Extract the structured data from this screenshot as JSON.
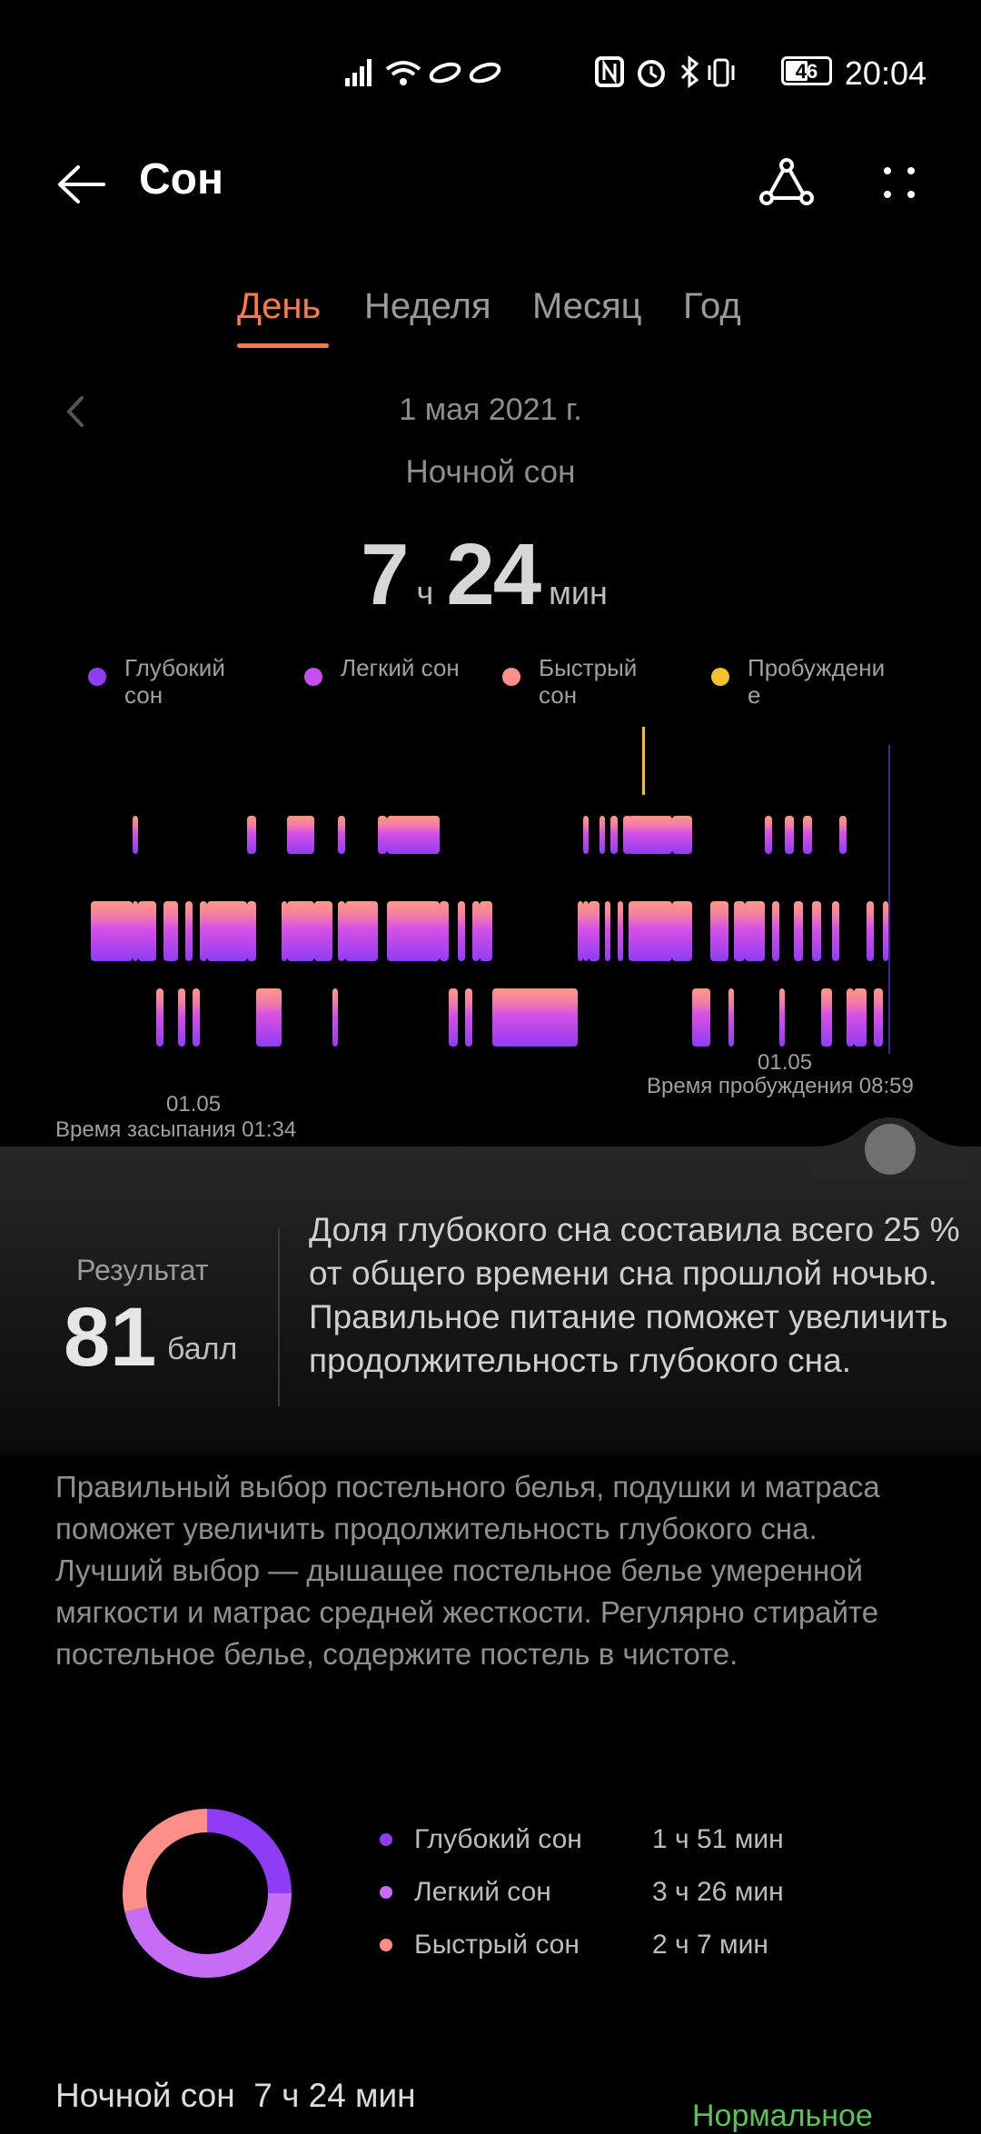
{
  "status_bar": {
    "time": "20:04",
    "battery": "46",
    "icons": [
      "signal-icon",
      "wifi-icon",
      "link-icon",
      "nfc-icon",
      "alarm-icon",
      "bluetooth-icon",
      "vibrate-icon",
      "battery-icon"
    ]
  },
  "header": {
    "title": "Сон",
    "icons": [
      "back-arrow-icon",
      "share-icon",
      "more-icon"
    ]
  },
  "tabs": [
    {
      "label": "День",
      "active": true
    },
    {
      "label": "Неделя",
      "active": false
    },
    {
      "label": "Месяц",
      "active": false
    },
    {
      "label": "Год",
      "active": false
    }
  ],
  "summary": {
    "date": "1 мая 2021 г.",
    "sleep_type": "Ночной сон",
    "hours": "7",
    "hours_unit": "ч",
    "minutes": "24",
    "minutes_unit": "мин"
  },
  "legend": [
    {
      "label": "Глубокий сон",
      "color": "#8f3df5"
    },
    {
      "label": "Легкий сон",
      "color": "#c84cf0"
    },
    {
      "label": "Быстрый сон",
      "color": "#ff8f88"
    },
    {
      "label": "Пробуждение",
      "color": "#f5c22d"
    }
  ],
  "chart": {
    "start_date": "01.05",
    "start_label": "Время засыпания 01:34",
    "end_date": "01.05",
    "end_label": "Время пробуждения 08:59"
  },
  "result": {
    "label": "Результат",
    "score": "81",
    "unit": "балл",
    "message": "Доля глубокого сна составила всего 25 % от общего времени сна прошлой ночью. Правильное питание поможет увеличить продолжительность глубокого сна."
  },
  "advice": "Правильный выбор постельного белья, подушки и матраса поможет увеличить продолжительность глубокого сна. Лучший выбор — дышащее постельное белье умеренной мягкости и матрас средней жесткости. Регулярно стирайте постельное белье, содержите постель в чистоте.",
  "stats": [
    {
      "name": "Глубокий сон",
      "value": "1 ч 51 мин",
      "color": "#8f3df5"
    },
    {
      "name": "Легкий сон",
      "value": "3 ч 26 мин",
      "color": "#c66cf5"
    },
    {
      "name": "Быстрый сон",
      "value": "2 ч 7 мин",
      "color": "#ff8f88"
    }
  ],
  "chart_data": {
    "type": "pie",
    "categories": [
      "Глубокий сон",
      "Легкий сон",
      "Быстрый сон"
    ],
    "values": [
      111,
      206,
      127
    ]
  },
  "bottom": {
    "label": "Ночной сон  7 ч 24 мин",
    "status": "Нормальное"
  }
}
